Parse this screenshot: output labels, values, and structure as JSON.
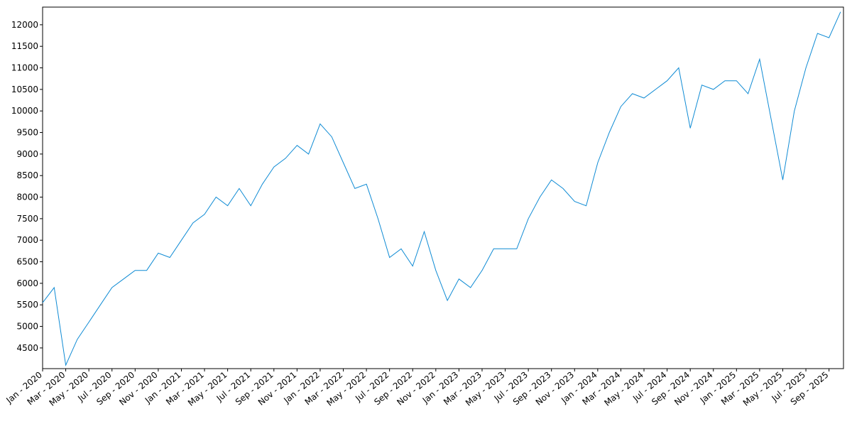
{
  "chart_data": {
    "type": "line",
    "x": [
      "Jan - 2020",
      null,
      "Mar - 2020",
      null,
      "May - 2020",
      null,
      "Jul - 2020",
      null,
      "Sep - 2020",
      null,
      "Nov - 2020",
      null,
      "Jan - 2021",
      null,
      "Mar - 2021",
      null,
      "May - 2021",
      null,
      "Jul - 2021",
      null,
      "Sep - 2021",
      null,
      "Nov - 2021",
      null,
      "Jan - 2022",
      null,
      "Mar - 2022",
      null,
      "May - 2022",
      null,
      "Jul - 2022",
      null,
      "Sep - 2022",
      null,
      "Nov - 2022",
      null,
      "Jan - 2023",
      null,
      "Mar - 2023",
      null,
      "May - 2023",
      null,
      "Jul - 2023",
      null,
      "Sep - 2023",
      null,
      "Nov - 2023",
      null,
      "Jan - 2024",
      null,
      "Mar - 2024",
      null,
      "May - 2024",
      null,
      "Jul - 2024",
      null,
      "Sep - 2024",
      null,
      "Nov - 2024",
      null,
      "Jan - 2025",
      null,
      "Mar - 2025",
      null,
      "May - 2025",
      null,
      "Jul - 2025",
      null,
      "Sep - 2025",
      null
    ],
    "series": [
      {
        "color": "#0f8bd4",
        "values": [
          5550,
          5900,
          4100,
          4700,
          5100,
          5500,
          5900,
          6100,
          6300,
          6300,
          6700,
          6600,
          7000,
          7400,
          7600,
          8000,
          7800,
          8200,
          7800,
          8300,
          8700,
          8900,
          9200,
          9000,
          9700,
          9400,
          8800,
          8200,
          8300,
          7500,
          6600,
          6800,
          6400,
          7200,
          6300,
          5600,
          6100,
          5900,
          6300,
          6800,
          6800,
          6800,
          7500,
          8000,
          8400,
          8200,
          7900,
          7800,
          8800,
          9500,
          10100,
          10400,
          10300,
          10500,
          10700,
          11000,
          9600,
          10600,
          10500,
          10700,
          10700,
          10400,
          11200,
          9800,
          8400,
          10000,
          11000,
          11800,
          11700,
          12300
        ]
      }
    ],
    "ylim": [
      4020,
      12410
    ],
    "yticks": [
      4500,
      5000,
      5500,
      6000,
      6500,
      7000,
      7500,
      8000,
      8500,
      9000,
      9500,
      10000,
      10500,
      11000,
      11500,
      12000
    ]
  }
}
